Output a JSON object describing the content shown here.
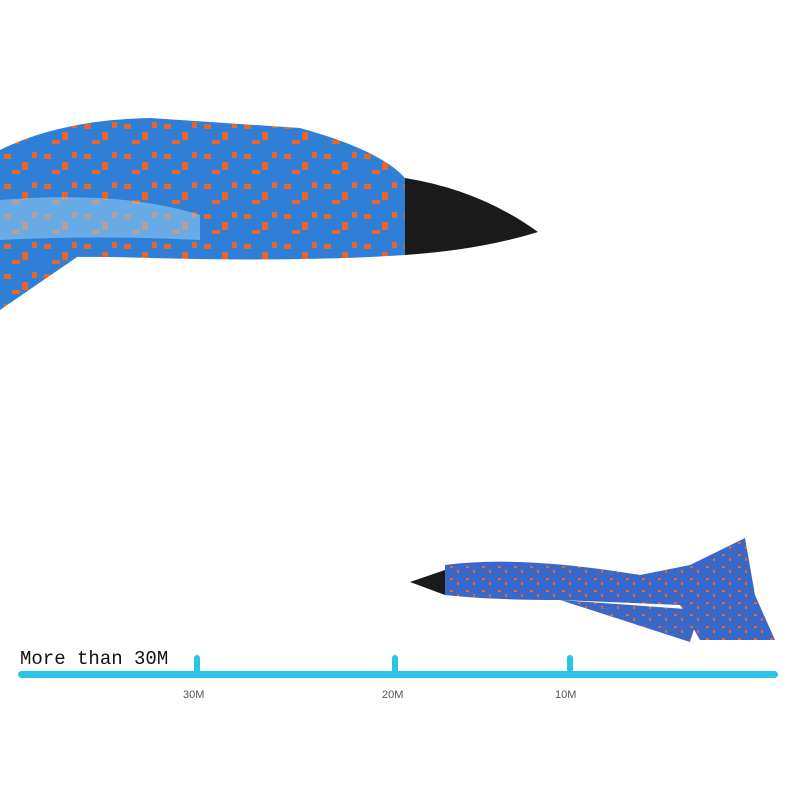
{
  "headline": "More than 30M",
  "scale": {
    "ticks": [
      "30M",
      "20M",
      "10M"
    ],
    "bar_color": "#2cc4e6"
  },
  "colors": {
    "plane_body": "#2f7fd6",
    "plane_spots": "#e8642a",
    "nose": "#1a1a1a"
  }
}
